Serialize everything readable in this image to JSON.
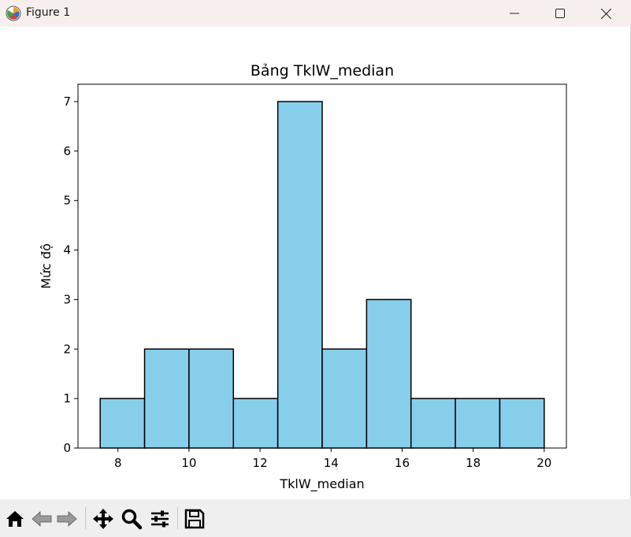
{
  "window": {
    "title": "Figure 1",
    "icon": "matplotlib-logo-icon",
    "controls": [
      "minimize-icon",
      "maximize-icon",
      "close-icon"
    ]
  },
  "toolbar": {
    "buttons": [
      "home-icon",
      "back-arrow-icon",
      "forward-arrow-icon",
      "pan-move-icon",
      "zoom-magnifier-icon",
      "configure-subplots-icon",
      "save-floppy-icon"
    ]
  },
  "colors": {
    "bar_fill": "#87ceeb",
    "bar_edge": "#000000",
    "titlebar_bg": "#f7efee",
    "toolbar_bg": "#efefef"
  },
  "chart_data": {
    "type": "bar",
    "title": "Bảng TklW_median",
    "xlabel": "TklW_median",
    "ylabel": "Mức độ",
    "bins": [
      {
        "start": 7.5,
        "end": 8.75,
        "value": 1
      },
      {
        "start": 8.75,
        "end": 10.0,
        "value": 2
      },
      {
        "start": 10.0,
        "end": 11.25,
        "value": 2
      },
      {
        "start": 11.25,
        "end": 12.5,
        "value": 1
      },
      {
        "start": 12.5,
        "end": 13.75,
        "value": 7
      },
      {
        "start": 13.75,
        "end": 15.0,
        "value": 2
      },
      {
        "start": 15.0,
        "end": 16.25,
        "value": 3
      },
      {
        "start": 16.25,
        "end": 17.5,
        "value": 1
      },
      {
        "start": 17.5,
        "end": 18.75,
        "value": 1
      },
      {
        "start": 18.75,
        "end": 20.0,
        "value": 1
      }
    ],
    "xlim": [
      6.875,
      20.625
    ],
    "ylim": [
      0,
      7.35
    ],
    "xticks": [
      8,
      10,
      12,
      14,
      16,
      18,
      20
    ],
    "yticks": [
      0,
      1,
      2,
      3,
      4,
      5,
      6,
      7
    ],
    "grid": false,
    "legend": "none"
  }
}
